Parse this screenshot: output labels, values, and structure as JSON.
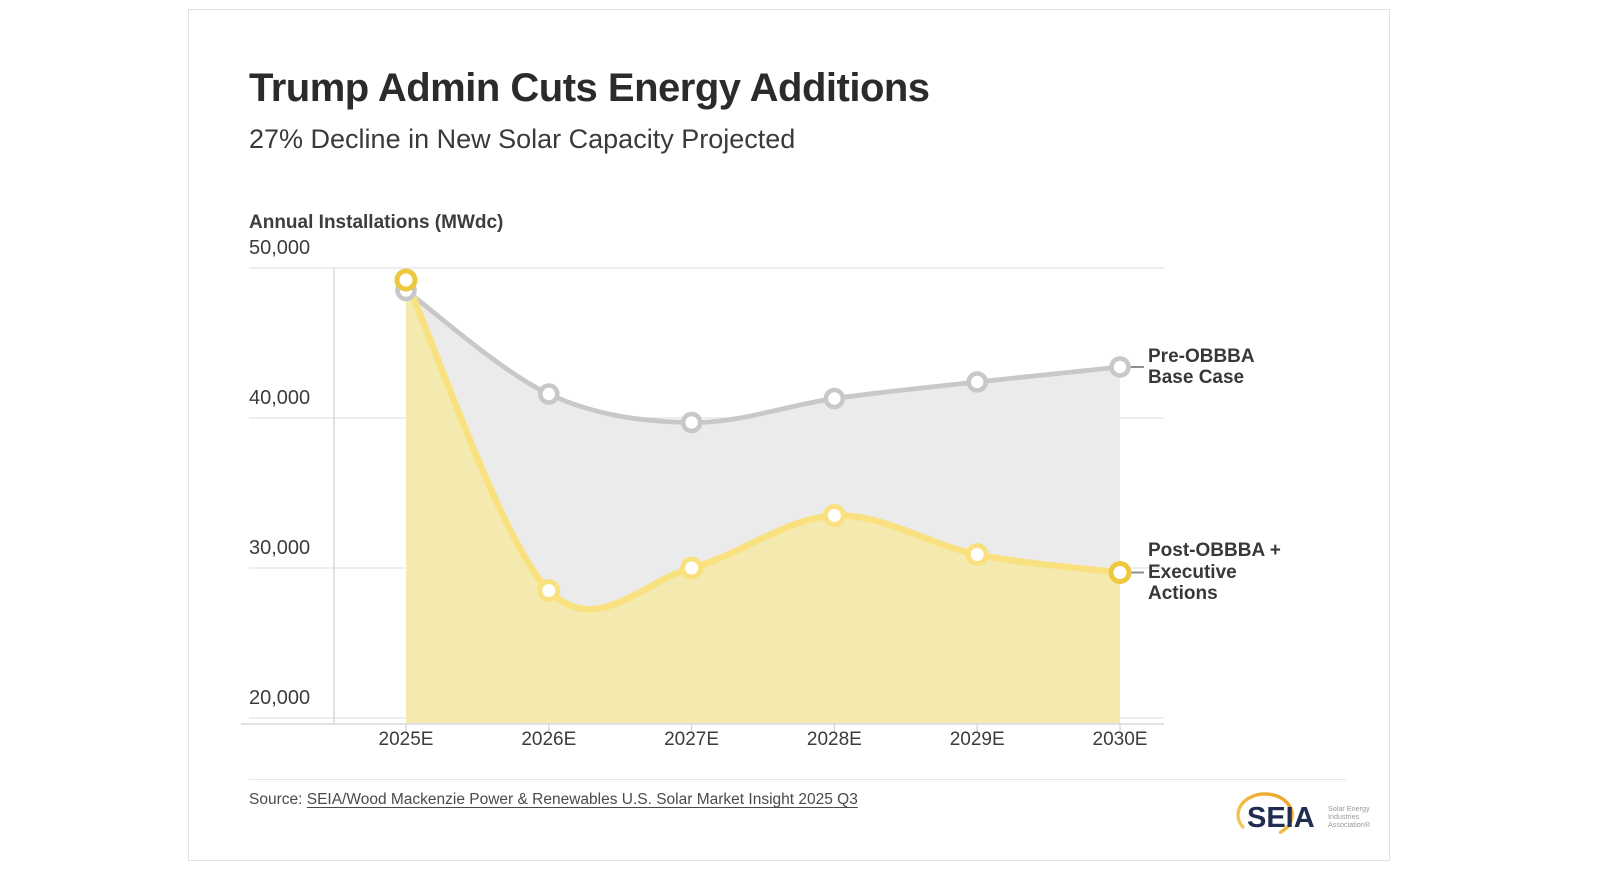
{
  "page": {
    "background": "#ffffff",
    "card_border": "#e2e2e2"
  },
  "header": {
    "title": "Trump Admin Cuts Energy Additions",
    "subtitle": "27% Decline in New Solar Capacity Projected"
  },
  "chart_data": {
    "type": "line",
    "title": "Trump Admin Cuts Energy Additions",
    "subtitle": "27% Decline in New Solar Capacity Projected",
    "ylabel": "Annual Installations (MWdc)",
    "xlabel": "",
    "categories": [
      "2025E",
      "2026E",
      "2027E",
      "2028E",
      "2029E",
      "2030E"
    ],
    "series": [
      {
        "name": "Pre-OBBBA Base Case",
        "legend_lines": [
          "Pre-OBBBA",
          "Base Case"
        ],
        "values": [
          48500,
          41600,
          39700,
          41300,
          42400,
          43400
        ],
        "line_color": "#c8c8c8",
        "fill_color": "#ebebeb",
        "marker_ring": "#c8c8c8",
        "endpoint_ring": "#c8c8c8"
      },
      {
        "name": "Post-OBBBA + Executive Actions",
        "legend_lines": [
          "Post-OBBBA +",
          "Executive",
          "Actions"
        ],
        "values": [
          49200,
          28500,
          30000,
          33500,
          30900,
          29700
        ],
        "line_color": "#f9e180",
        "fill_color": "#f4e9af",
        "marker_ring": "#f9e180",
        "endpoint_ring": "#eec93f"
      }
    ],
    "y_tick_labels": [
      "50,000",
      "40,000",
      "30,000",
      "20,000"
    ],
    "y_tick_values": [
      50000,
      40000,
      30000,
      20000
    ],
    "ylim": [
      19600,
      50600
    ],
    "grid": true,
    "legend_position": "right-of-last-point",
    "marker_fill": "#ffffff",
    "grid_color": "#e9e9e9",
    "axis_color": "#d9d9d9",
    "leader_color": "#8f8f8f"
  },
  "footer": {
    "source_prefix": "Source: ",
    "source_link": "SEIA/Wood Mackenzie Power & Renewables U.S. Solar Market Insight 2025 Q3"
  },
  "logo": {
    "wordmark": "SEIA",
    "tagline_lines": [
      "Solar Energy",
      "Industries",
      "Association®"
    ],
    "navy": "#1e2d50",
    "gold": "#eda72c",
    "tagline_color": "#999999"
  }
}
